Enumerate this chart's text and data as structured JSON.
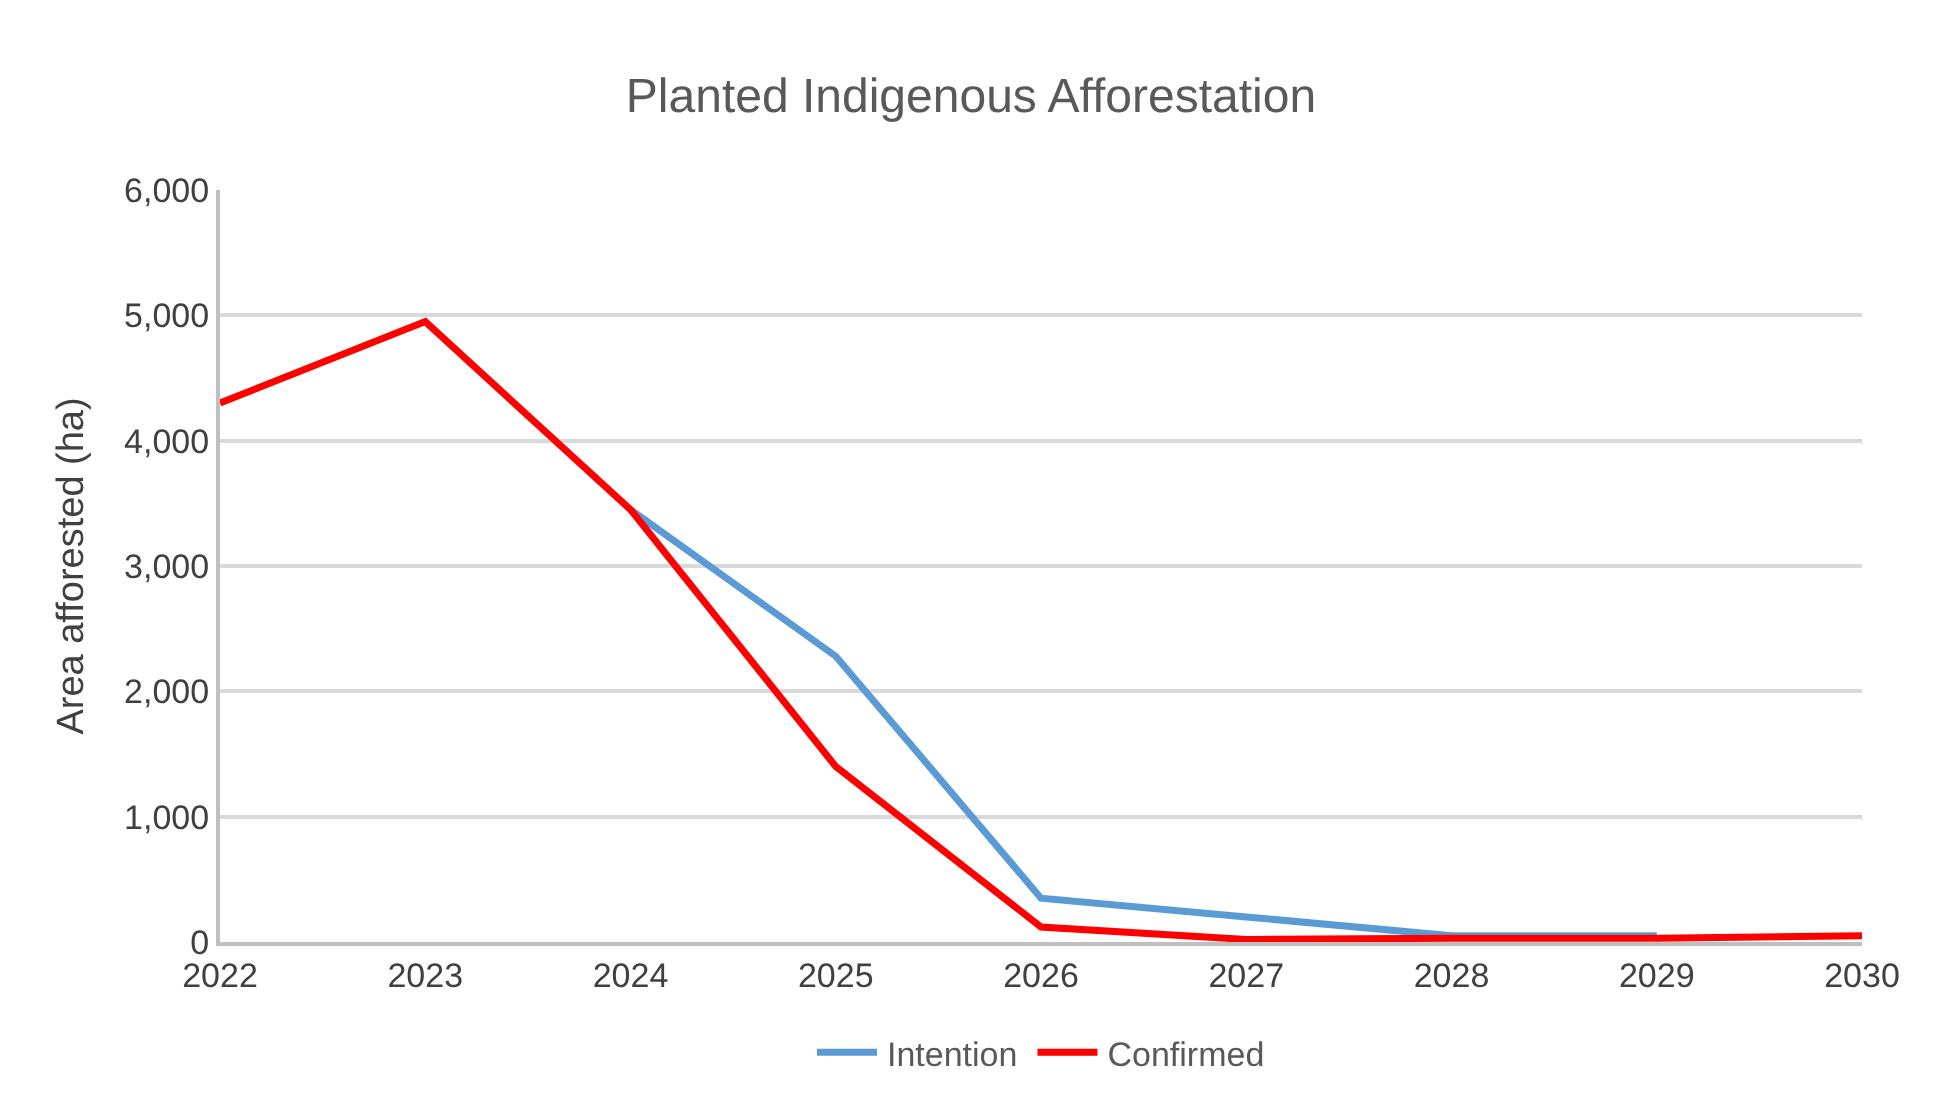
{
  "chart_data": {
    "type": "line",
    "title": "Planted Indigenous Afforestation",
    "ylabel": "Area afforested (ha)",
    "x": [
      2022,
      2023,
      2024,
      2025,
      2026,
      2027,
      2028,
      2029,
      2030
    ],
    "series": [
      {
        "name": "Intention",
        "color": "#5b9bd5",
        "values": [
          null,
          null,
          3450,
          2280,
          350,
          200,
          50,
          50,
          null
        ]
      },
      {
        "name": "Confirmed",
        "color": "#ff0000",
        "values": [
          4300,
          4950,
          3450,
          1400,
          120,
          20,
          30,
          30,
          50
        ]
      }
    ],
    "xlim": [
      2022,
      2030
    ],
    "xticks": [
      2022,
      2023,
      2024,
      2025,
      2026,
      2027,
      2028,
      2029,
      2030
    ],
    "ylim": [
      0,
      6000
    ],
    "yticks": [
      {
        "value": 0,
        "label": "0"
      },
      {
        "value": 1000,
        "label": "1,000"
      },
      {
        "value": 2000,
        "label": "2,000"
      },
      {
        "value": 3000,
        "label": "3,000"
      },
      {
        "value": 4000,
        "label": "4,000"
      },
      {
        "value": 5000,
        "label": "5,000"
      },
      {
        "value": 6000,
        "label": "6,000"
      }
    ],
    "grid": "y",
    "legend": "bottom",
    "marker": "none",
    "line_style": "solid"
  }
}
